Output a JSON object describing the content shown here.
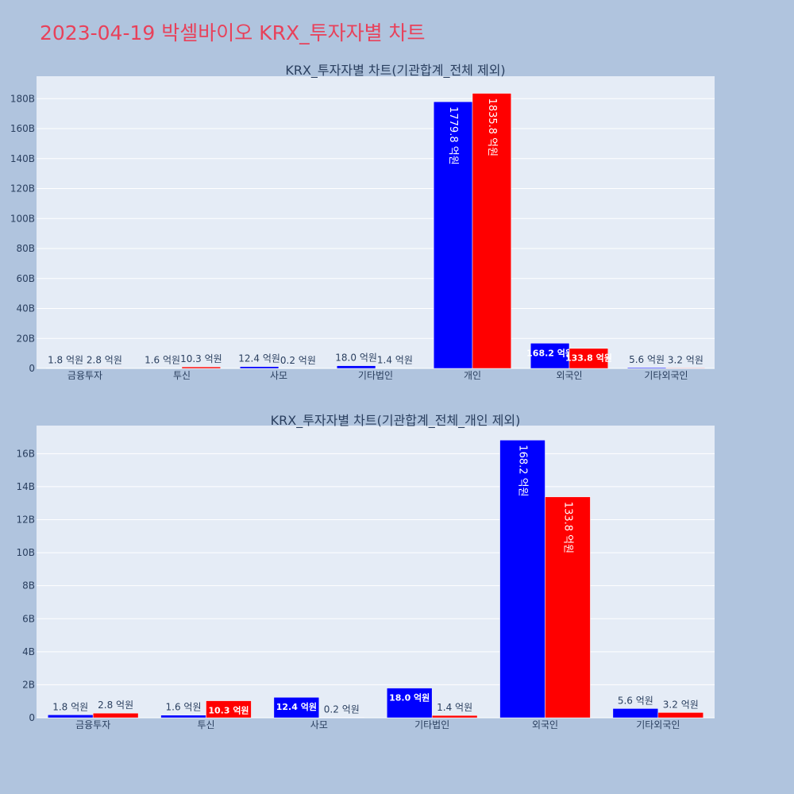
{
  "page": {
    "title": "2023-04-19 박셀바이오 KRX_투자자별 차트"
  },
  "colors": {
    "buy": "#0000ff",
    "sell": "#ff0000",
    "plot_bg": "#e5ecf6",
    "page_bg": "#b0c4de",
    "title": "#e8415a"
  },
  "chart_data": [
    {
      "type": "bar",
      "title": "KRX_투자자별 차트(기관합계_전체 제외)",
      "categories": [
        "금융투자",
        "투신",
        "사모",
        "기타법인",
        "개인",
        "외국인",
        "기타외국인"
      ],
      "series": [
        {
          "color": "#0000ff",
          "values": [
            0.18,
            0.16,
            1.24,
            1.8,
            177.98,
            16.82,
            0.56
          ],
          "labels": [
            "1.8 억원",
            "1.6 억원",
            "12.4 억원",
            "18.0 억원",
            "1779.8 억원",
            "168.2 억원",
            "5.6 억원"
          ]
        },
        {
          "color": "#ff0000",
          "values": [
            0.28,
            1.03,
            0.02,
            0.14,
            183.58,
            13.38,
            0.32
          ],
          "labels": [
            "2.8 억원",
            "10.3 억원",
            "0.2 억원",
            "1.4 억원",
            "1835.8 억원",
            "133.8 억원",
            "3.2 억원"
          ]
        }
      ],
      "ylim": [
        0,
        195
      ],
      "yticks": [
        0,
        20,
        40,
        60,
        80,
        100,
        120,
        140,
        160,
        180
      ],
      "ytick_labels": [
        "0",
        "20B",
        "40B",
        "60B",
        "80B",
        "100B",
        "120B",
        "140B",
        "160B",
        "180B"
      ],
      "grid": true
    },
    {
      "type": "bar",
      "title": "KRX_투자자별 차트(기관합계_전체_개인 제외)",
      "categories": [
        "금융투자",
        "투신",
        "사모",
        "기타법인",
        "외국인",
        "기타외국인"
      ],
      "series": [
        {
          "color": "#0000ff",
          "values": [
            0.18,
            0.16,
            1.24,
            1.8,
            16.82,
            0.56
          ],
          "labels": [
            "1.8 억원",
            "1.6 억원",
            "12.4 억원",
            "18.0 억원",
            "168.2 억원",
            "5.6 억원"
          ]
        },
        {
          "color": "#ff0000",
          "values": [
            0.28,
            1.03,
            0.02,
            0.14,
            13.38,
            0.32
          ],
          "labels": [
            "2.8 억원",
            "10.3 억원",
            "0.2 억원",
            "1.4 억원",
            "133.8 억원",
            "3.2 억원"
          ]
        }
      ],
      "ylim": [
        0,
        17.7
      ],
      "yticks": [
        0,
        2,
        4,
        6,
        8,
        10,
        12,
        14,
        16
      ],
      "ytick_labels": [
        "0",
        "2B",
        "4B",
        "6B",
        "8B",
        "10B",
        "12B",
        "14B",
        "16B"
      ],
      "grid": true
    }
  ]
}
